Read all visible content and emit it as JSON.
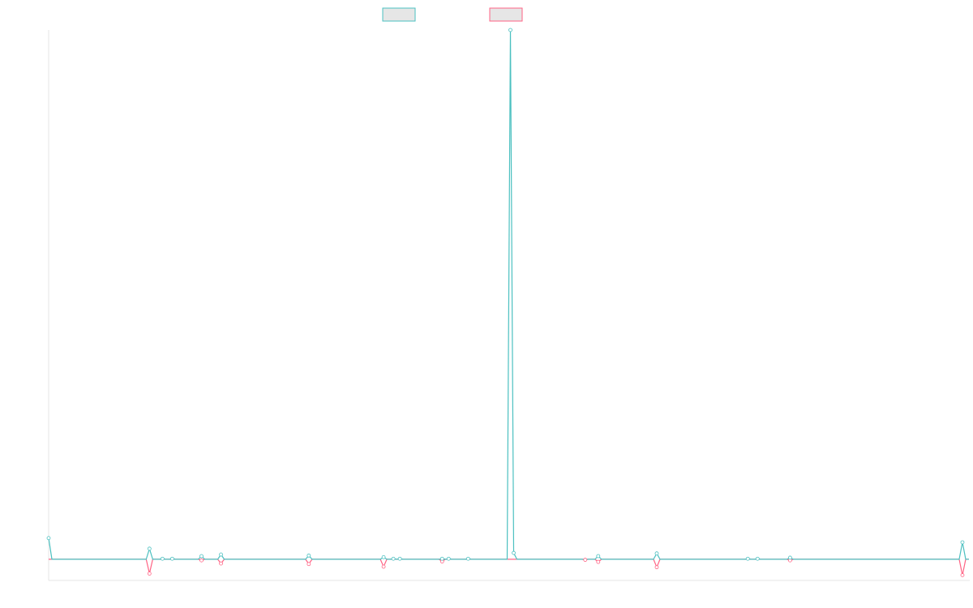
{
  "chart_data": {
    "type": "line",
    "title": "",
    "xlabel": "",
    "ylabel": "",
    "legend": "top-center",
    "grid": false,
    "n_points": 284,
    "ylim": [
      -4,
      100
    ],
    "series": [
      {
        "color": "#4bc0c0",
        "fill": "#e6e6e6",
        "values": [
          {
            "i": 0,
            "v": 4
          },
          {
            "i": 31,
            "v": 2
          },
          {
            "i": 35,
            "v": 0.1
          },
          {
            "i": 38,
            "v": 0.1
          },
          {
            "i": 47,
            "v": 0.6
          },
          {
            "i": 53,
            "v": 0.9
          },
          {
            "i": 80,
            "v": 0.7
          },
          {
            "i": 103,
            "v": 0.4
          },
          {
            "i": 106,
            "v": 0.1
          },
          {
            "i": 108,
            "v": 0.1
          },
          {
            "i": 121,
            "v": 0.1
          },
          {
            "i": 123,
            "v": 0.1
          },
          {
            "i": 129,
            "v": 0.1
          },
          {
            "i": 142,
            "v": 100
          },
          {
            "i": 143,
            "v": 1.2
          },
          {
            "i": 169,
            "v": 0.6
          },
          {
            "i": 187,
            "v": 1.1
          },
          {
            "i": 215,
            "v": 0.1
          },
          {
            "i": 218,
            "v": 0.1
          },
          {
            "i": 228,
            "v": 0.3
          },
          {
            "i": 281,
            "v": 3.2
          }
        ]
      },
      {
        "color": "#ff6384",
        "fill": "#e6e6e6",
        "values": [
          {
            "i": 31,
            "v": -2.7
          },
          {
            "i": 47,
            "v": -0.2
          },
          {
            "i": 53,
            "v": -0.8
          },
          {
            "i": 80,
            "v": -0.9
          },
          {
            "i": 103,
            "v": -1.4
          },
          {
            "i": 121,
            "v": -0.4
          },
          {
            "i": 165,
            "v": -0.1
          },
          {
            "i": 169,
            "v": -0.5
          },
          {
            "i": 187,
            "v": -1.5
          },
          {
            "i": 228,
            "v": -0.2
          },
          {
            "i": 281,
            "v": -3
          }
        ]
      }
    ]
  }
}
